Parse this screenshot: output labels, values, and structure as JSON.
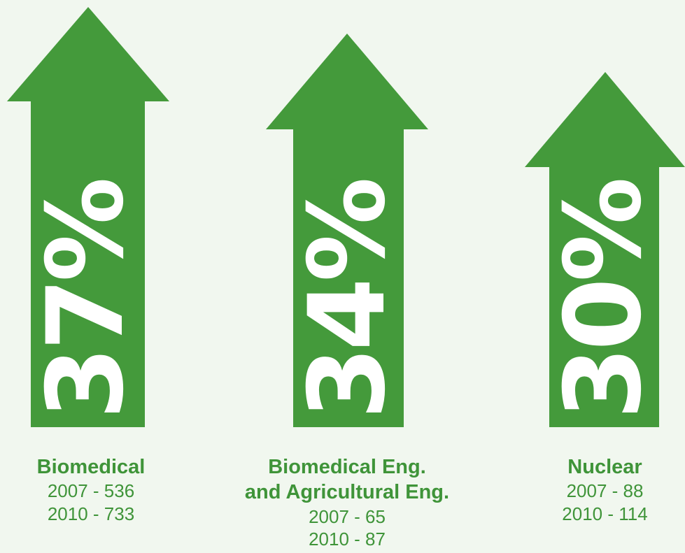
{
  "colors": {
    "arrow": "#449a3b",
    "text": "#3f9439",
    "background": "#f1f7ef"
  },
  "items": [
    {
      "percent": "37%",
      "name": "Biomedical",
      "stats": [
        "2007 - 536",
        "2010 - 733"
      ]
    },
    {
      "percent": "34%",
      "name": "Biomedical Eng.\nand Agricultural Eng.",
      "stats": [
        "2007 - 65",
        "2010 - 87"
      ]
    },
    {
      "percent": "30%",
      "name": "Nuclear",
      "stats": [
        "2007 - 88",
        "2010 - 114"
      ]
    }
  ]
}
